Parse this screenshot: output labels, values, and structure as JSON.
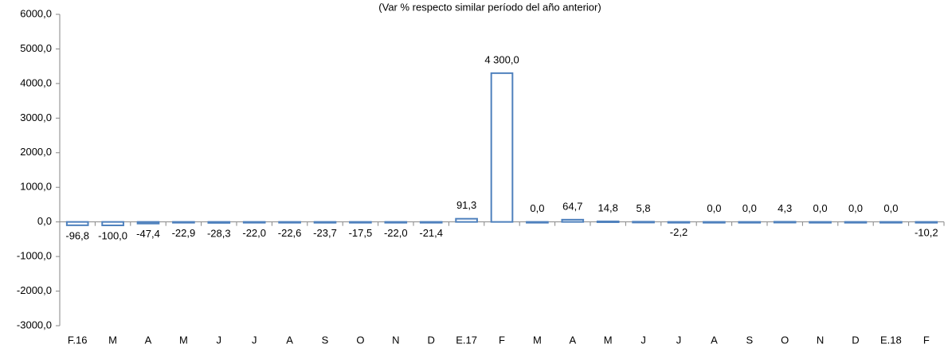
{
  "chart_data": {
    "type": "bar",
    "title": "(Var % respecto similar período del año anterior)",
    "categories": [
      "F.16",
      "M",
      "A",
      "M",
      "J",
      "J",
      "A",
      "S",
      "O",
      "N",
      "D",
      "E.17",
      "F",
      "M",
      "A",
      "M",
      "J",
      "J",
      "A",
      "S",
      "O",
      "N",
      "D",
      "E.18",
      "F"
    ],
    "values": [
      -96.8,
      -100.0,
      -47.4,
      -22.9,
      -28.3,
      -22.0,
      -22.6,
      -23.7,
      -17.5,
      -22.0,
      -21.4,
      91.3,
      4300.0,
      0.0,
      64.7,
      14.8,
      5.8,
      -2.2,
      0.0,
      0.0,
      4.3,
      0.0,
      0.0,
      0.0,
      -10.2
    ],
    "value_labels": [
      "-96,8",
      "-100,0",
      "-47,4",
      "-22,9",
      "-28,3",
      "-22,0",
      "-22,6",
      "-23,7",
      "-17,5",
      "-22,0",
      "-21,4",
      "91,3",
      "4 300,0",
      "0,0",
      "64,7",
      "14,8",
      "5,8",
      "-2,2",
      "0,0",
      "0,0",
      "4,3",
      "0,0",
      "0,0",
      "0,0",
      "-10,2"
    ],
    "color": "#4f81bd",
    "ylim": [
      -3000,
      6000
    ],
    "yticks": [
      {
        "value": -3000,
        "label": "-3000,0"
      },
      {
        "value": -2000,
        "label": "-2000,0"
      },
      {
        "value": -1000,
        "label": "-1000,0"
      },
      {
        "value": 0,
        "label": "0,0"
      },
      {
        "value": 1000,
        "label": "1000,0"
      },
      {
        "value": 2000,
        "label": "2000,0"
      },
      {
        "value": 3000,
        "label": "3000,0"
      },
      {
        "value": 4000,
        "label": "4000,0"
      },
      {
        "value": 5000,
        "label": "5000,0"
      },
      {
        "value": 6000,
        "label": "6000,0"
      }
    ],
    "grid": false
  }
}
